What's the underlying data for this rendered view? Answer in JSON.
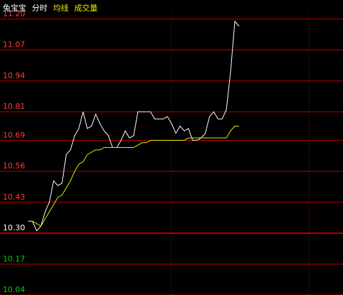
{
  "chart_data": {
    "type": "line",
    "title": "兔宝宝",
    "extra_label": "成交量",
    "extra_label_color": "#e8e800",
    "series": [
      {
        "name": "分时",
        "color": "#ffffff",
        "values": [
          10.35,
          10.35,
          10.31,
          10.33,
          10.39,
          10.43,
          10.52,
          10.5,
          10.51,
          10.63,
          10.65,
          10.71,
          10.74,
          10.81,
          10.74,
          10.75,
          10.8,
          10.76,
          10.73,
          10.71,
          10.66,
          10.66,
          10.69,
          10.73,
          10.7,
          10.71,
          10.81,
          10.81,
          10.81,
          10.81,
          10.78,
          10.78,
          10.78,
          10.79,
          10.76,
          10.72,
          10.75,
          10.73,
          10.74,
          10.69,
          10.69,
          10.7,
          10.72,
          10.79,
          10.81,
          10.78,
          10.78,
          10.82,
          10.98,
          11.19,
          11.17
        ]
      },
      {
        "name": "均线",
        "color": "#e8e800",
        "values": [
          10.35,
          10.35,
          10.34,
          10.33,
          10.36,
          10.39,
          10.42,
          10.45,
          10.46,
          10.49,
          10.52,
          10.56,
          10.59,
          10.6,
          10.63,
          10.64,
          10.65,
          10.65,
          10.66,
          10.66,
          10.66,
          10.66,
          10.66,
          10.66,
          10.66,
          10.66,
          10.67,
          10.68,
          10.68,
          10.69,
          10.69,
          10.69,
          10.69,
          10.69,
          10.69,
          10.69,
          10.69,
          10.69,
          10.7,
          10.7,
          10.7,
          10.7,
          10.7,
          10.7,
          10.7,
          10.7,
          10.7,
          10.7,
          10.73,
          10.75,
          10.75
        ]
      }
    ],
    "ylim": [
      10.04,
      11.28
    ],
    "yticks": [
      {
        "value": 11.2,
        "label": "11.20"
      },
      11.07,
      10.94,
      10.81,
      10.69,
      10.56,
      10.43,
      {
        "value": 10.3,
        "label": "10.30"
      },
      10.17,
      10.04
    ],
    "ytick_colors": [
      "#ff3c3c",
      "#ff3c3c",
      "#ff3c3c",
      "#ff3c3c",
      "#ff3c3c",
      "#ff3c3c",
      "#ff3c3c",
      "#ffffff",
      "#00d000",
      "#00d000"
    ],
    "grid_color": "#c00000",
    "grid": true
  }
}
